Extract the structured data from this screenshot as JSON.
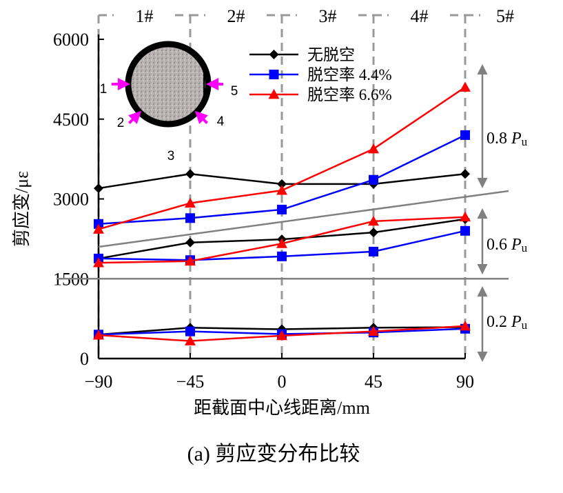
{
  "chart_data": {
    "type": "line",
    "xlabel": "距截面中心线距离/mm",
    "ylabel": "剪应变/με",
    "caption": "(a)  剪应变分布比较",
    "x": [
      -90,
      -45,
      0,
      45,
      90
    ],
    "xlim": [
      -90,
      90
    ],
    "ylim": [
      0,
      6000
    ],
    "x_ticks": [
      "−90",
      "−45",
      "0",
      "45",
      "90"
    ],
    "y_ticks": [
      "0",
      "1500",
      "3000",
      "4500",
      "6000"
    ],
    "y_tick_values": [
      0,
      1500,
      3000,
      4500,
      6000
    ],
    "positions": [
      "1#",
      "2#",
      "3#",
      "4#",
      "5#"
    ],
    "legend_placement": "top-center",
    "colors": {
      "series_1": "#000000",
      "series_2": "#0000ff",
      "series_3": "#ff0000",
      "divider": "#808080"
    },
    "series": [
      {
        "name": "无脱空",
        "marker": "diamond",
        "load_levels": {
          "0.8": [
            3200,
            3470,
            3280,
            3280,
            3470
          ],
          "0.6": [
            1880,
            2180,
            2240,
            2370,
            2620
          ],
          "0.2": [
            450,
            580,
            550,
            580,
            590
          ]
        }
      },
      {
        "name": "脱空率 4.4%",
        "marker": "square",
        "load_levels": {
          "0.8": [
            2530,
            2640,
            2800,
            3360,
            4200
          ],
          "0.6": [
            1880,
            1850,
            1920,
            2010,
            2400
          ],
          "0.2": [
            450,
            510,
            460,
            490,
            560
          ]
        }
      },
      {
        "name": "脱空率 6.6%",
        "marker": "triangle",
        "load_levels": {
          "0.8": [
            2430,
            2920,
            3160,
            3940,
            5100
          ],
          "0.6": [
            1800,
            1830,
            2160,
            2580,
            2660
          ],
          "0.2": [
            440,
            330,
            430,
            510,
            610
          ]
        }
      }
    ],
    "load_bands": [
      {
        "label": "0.8 ",
        "symbol": "P",
        "sub": "u"
      },
      {
        "label": "0.6 ",
        "symbol": "P",
        "sub": "u"
      },
      {
        "label": "0.2 ",
        "symbol": "P",
        "sub": "u"
      }
    ],
    "inset": {
      "points": [
        "1",
        "2",
        "3",
        "4",
        "5"
      ]
    }
  }
}
